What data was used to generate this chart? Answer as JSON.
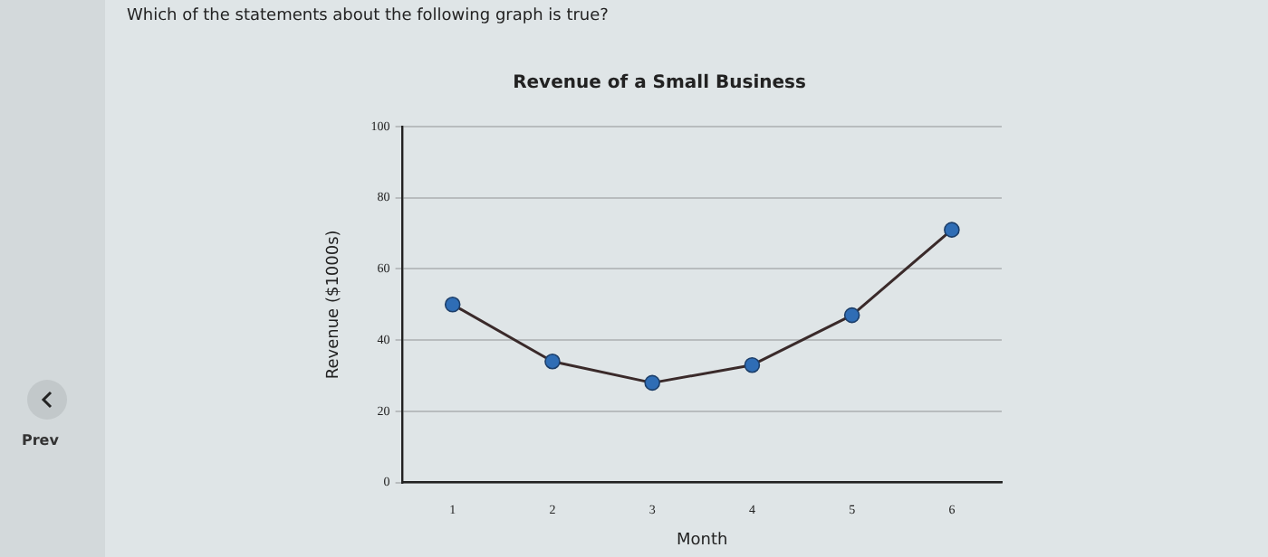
{
  "chart_data": {
    "type": "line",
    "title": "Revenue of a Small Business",
    "xlabel": "Month",
    "ylabel": "Revenue ($1000s)",
    "categories": [
      "1",
      "2",
      "3",
      "4",
      "5",
      "6"
    ],
    "series": [
      {
        "color": "#3a2a2a",
        "values": [
          50,
          34,
          28,
          33,
          47,
          71
        ]
      }
    ],
    "ylim": [
      0,
      100
    ],
    "yticks": [
      0,
      20,
      40,
      60,
      80,
      100
    ],
    "grid": "y",
    "marker": "circle",
    "legend": false,
    "annotations": [
      "Which of the statements about the following graph is true?",
      "Prev"
    ]
  }
}
